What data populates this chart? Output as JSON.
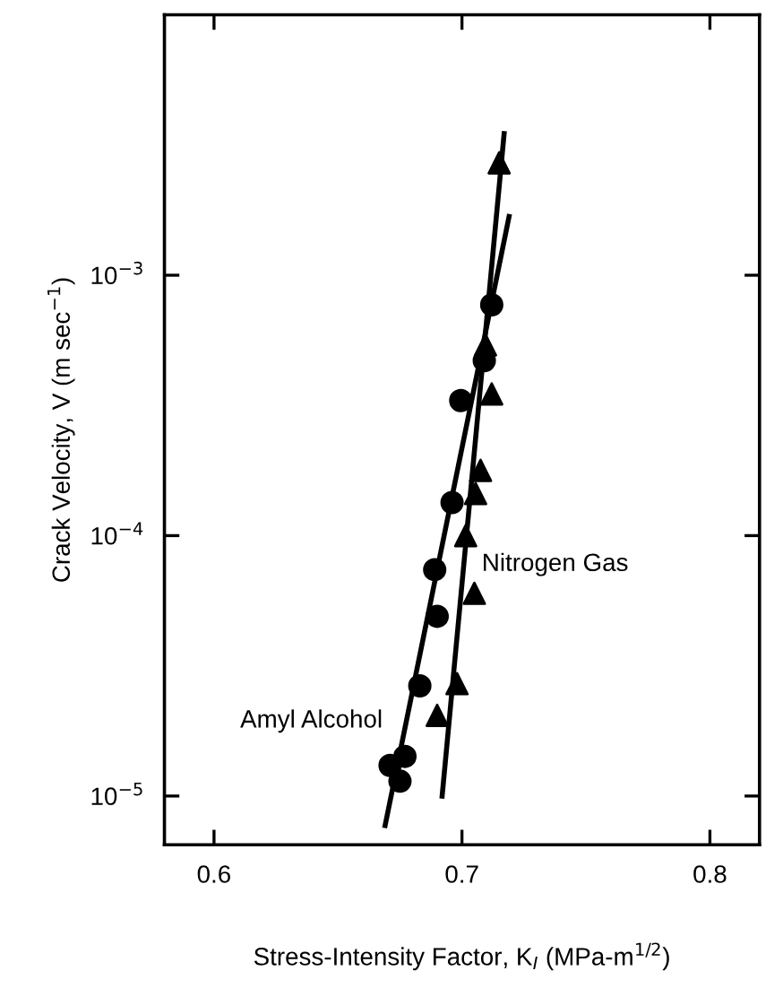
{
  "chart_data": {
    "type": "scatter",
    "xlabel": "Stress-Intensity Factor, K$_{I}$ (MPa-m$^{1/2}$)",
    "ylabel": "Crack Velocity, V (m sec$^{−1}$)",
    "log": "y",
    "grid": false,
    "legend": false,
    "xlim": [
      0.58,
      0.82
    ],
    "ylim": [
      6.5e-06,
      0.01
    ],
    "xticks": [
      0.6,
      0.7,
      0.8
    ],
    "yticks": [
      {
        "value": 1e-05,
        "label": "10$^{−5}$"
      },
      {
        "value": 0.0001,
        "label": "10$^{−4}$"
      },
      {
        "value": 0.001,
        "label": "10$^{−3}$"
      }
    ],
    "series": [
      {
        "name": "Amyl Alcohol",
        "marker": "circle",
        "color": "#000000",
        "x": [
          0.712,
          0.709,
          0.6995,
          0.696,
          0.689,
          0.69,
          0.683,
          0.677,
          0.671,
          0.675
        ],
        "values": [
          0.00077,
          0.00047,
          0.00033,
          0.000134,
          7.4e-05,
          4.9e-05,
          2.65e-05,
          1.42e-05,
          1.31e-05,
          1.14e-05
        ]
      },
      {
        "name": "Nitrogen Gas",
        "marker": "triangle",
        "color": "#000000",
        "x": [
          0.715,
          0.7095,
          0.712,
          0.7075,
          0.7055,
          0.7015,
          0.705,
          0.698,
          0.69
        ],
        "values": [
          0.0027,
          0.00054,
          0.00035,
          0.000178,
          0.000145,
          0.0001,
          6e-05,
          2.7e-05,
          2.04e-05
        ]
      },
      {
        "type": "line",
        "line_style": "solid",
        "color": "#000000",
        "x": [
          0.669,
          0.719
        ],
        "values": [
          7.7e-06,
          0.00168
        ]
      },
      {
        "type": "line",
        "line_style": "solid",
        "color": "#000000",
        "x": [
          0.692,
          0.717
        ],
        "values": [
          1e-05,
          0.0035
        ]
      }
    ]
  }
}
